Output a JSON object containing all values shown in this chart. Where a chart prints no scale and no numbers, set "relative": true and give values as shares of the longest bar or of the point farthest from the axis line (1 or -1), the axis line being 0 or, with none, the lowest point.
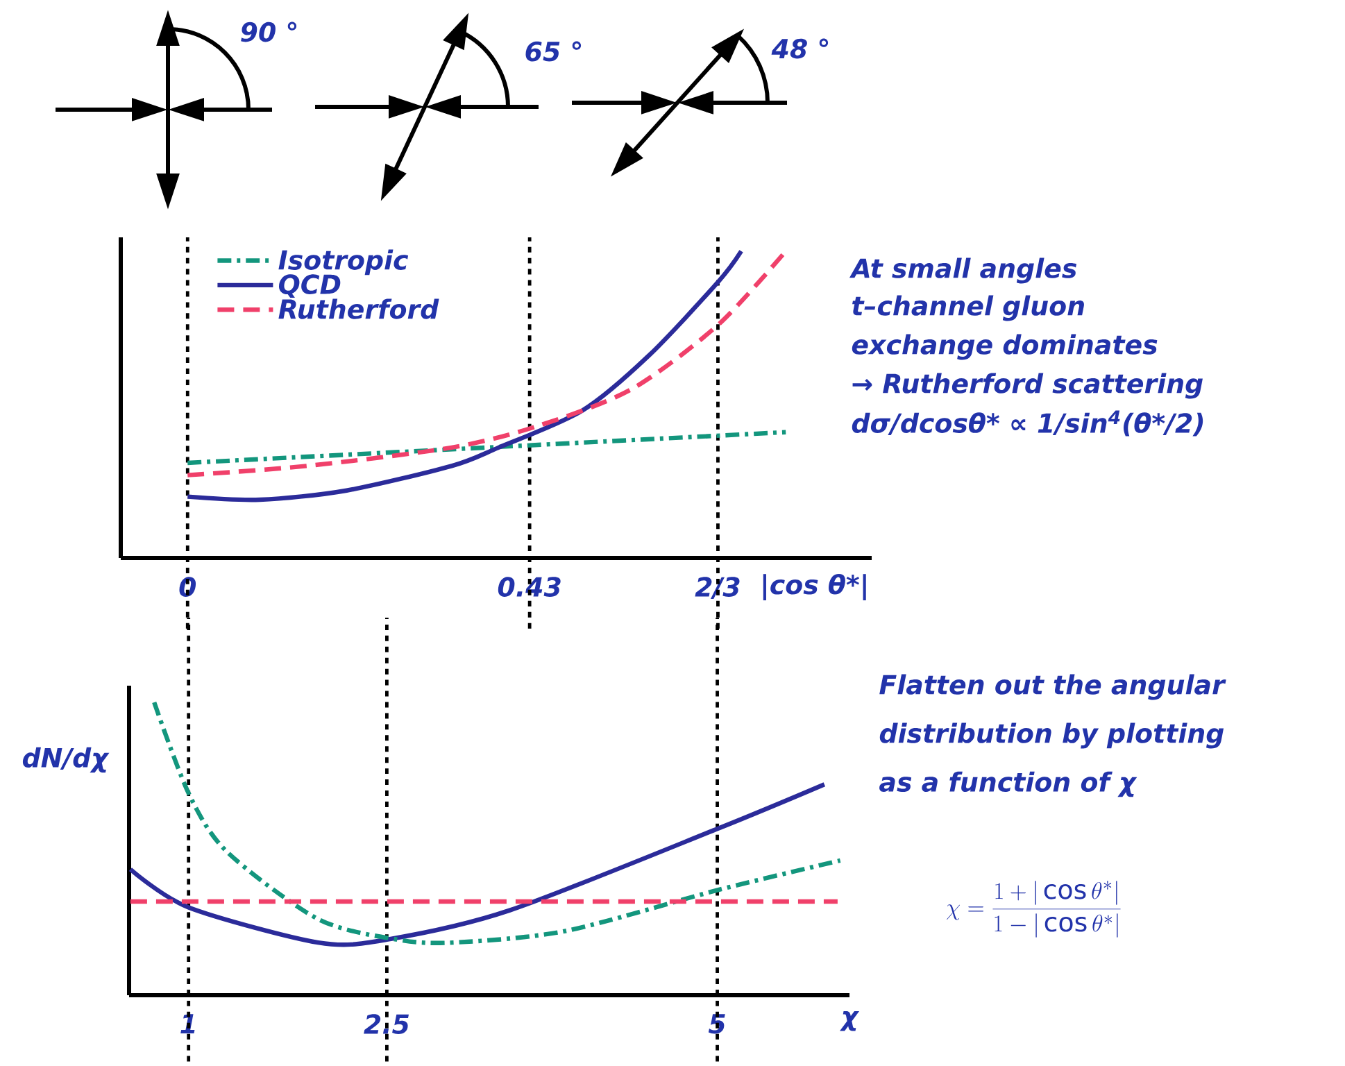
{
  "chart_data": [
    {
      "type": "line",
      "relative": true,
      "xlabel": "|cos θ*|",
      "xlim": [
        -0.084,
        0.86
      ],
      "xticks": [
        0,
        0.43,
        {
          "value": 0.6667,
          "label": "2/3"
        }
      ],
      "tick_labels": "x",
      "legend": "top left",
      "annotations": [
        "90 °",
        "65 °",
        "48 °",
        "At small angles",
        "t–channel gluon",
        "exchange dominates",
        "→ Rutherford scattering",
        "dσ/dcosθ* ∝ 1/sin$^{4}$(θ*/2)"
      ],
      "ref_lines": [
        {
          "axis": "x",
          "value": 0,
          "color": "#000000",
          "line_style": "dotted"
        },
        {
          "axis": "x",
          "value": 0.43,
          "color": "#000000",
          "line_style": "dotted"
        },
        {
          "axis": "x",
          "value": 0.6667,
          "color": "#000000",
          "line_style": "dotted"
        }
      ],
      "series": [
        {
          "name": "Isotropic",
          "color": "#13967d",
          "line_style": "dashdot",
          "x": [
            0,
            0.752
          ],
          "values": [
            0.31,
            0.41
          ]
        },
        {
          "name": "QCD",
          "color": "#2b2b9a",
          "line_style": "solid",
          "x": [
            0,
            0.091,
            0.2,
            0.332,
            0.391,
            0.496,
            0.58,
            0.667,
            0.696
          ],
          "values": [
            0.2,
            0.19,
            0.22,
            0.3,
            0.36,
            0.48,
            0.66,
            0.9,
            1
          ]
        },
        {
          "name": "Rutherford",
          "color": "#f0406a",
          "line_style": "dashed",
          "x": [
            0,
            0.15,
            0.332,
            0.44,
            0.558,
            0.667,
            0.752
          ],
          "values": [
            0.27,
            0.3,
            0.36,
            0.43,
            0.55,
            0.76,
            1
          ]
        }
      ]
    },
    {
      "type": "line",
      "relative": true,
      "xlabel": "χ",
      "ylabel": "dN/dχ",
      "xlim": [
        0.55,
        6.0
      ],
      "xticks": [
        1,
        2.5,
        5
      ],
      "tick_labels": "x",
      "annotations": [
        "Flatten out the angular",
        "distribution by plotting",
        "as a function of χ",
        "\\chi = \\frac{1+|\\cos\\theta^*|}{1-|\\cos\\theta^*|}"
      ],
      "ref_lines": [
        {
          "axis": "x",
          "value": 1,
          "color": "#000000",
          "line_style": "dotted"
        },
        {
          "axis": "x",
          "value": 2.5,
          "color": "#000000",
          "line_style": "dotted"
        },
        {
          "axis": "x",
          "value": 5,
          "color": "#000000",
          "line_style": "dotted"
        }
      ],
      "series": [
        {
          "color": "#2b2b9a",
          "line_style": "solid",
          "x": [
            0.56,
            1,
            1.98,
            2.5,
            3.43,
            5.01,
            5.81
          ],
          "values": [
            0.43,
            0.3,
            0.18,
            0.19,
            0.29,
            0.57,
            0.72
          ]
        },
        {
          "color": "#13967d",
          "line_style": "dashdot",
          "x": [
            0.74,
            1,
            1.29,
            1.98,
            2.58,
            3.01,
            3.86,
            5.01,
            5.93
          ],
          "values": [
            1,
            0.69,
            0.49,
            0.26,
            0.19,
            0.18,
            0.22,
            0.36,
            0.46
          ]
        },
        {
          "color": "#f0406a",
          "line_style": "dashed",
          "x": [
            0.56,
            5.91
          ],
          "values": [
            0.32,
            0.32
          ]
        }
      ]
    }
  ]
}
